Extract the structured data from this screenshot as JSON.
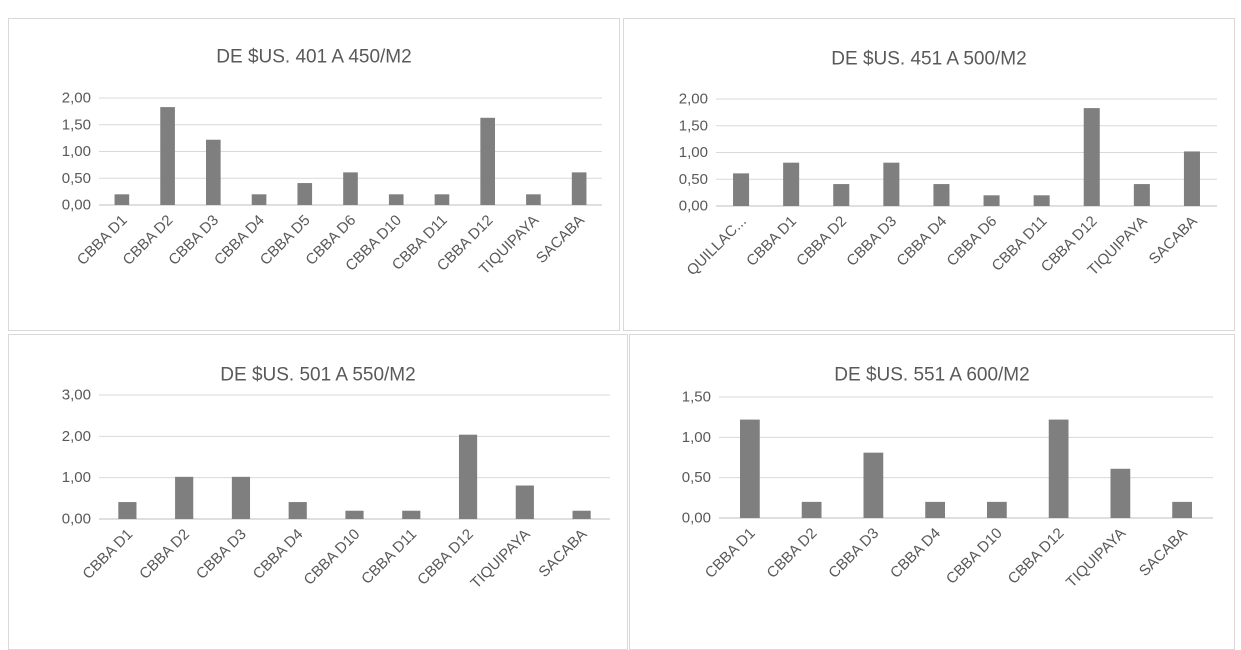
{
  "header": {
    "title": ""
  },
  "chart_data": [
    {
      "type": "bar",
      "title": "DE $US. 401 A 450/M2",
      "categories": [
        "CBBA D1",
        "CBBA D2",
        "CBBA D3",
        "CBBA D4",
        "CBBA D5",
        "CBBA D6",
        "CBBA D10",
        "CBBA D11",
        "CBBA D12",
        "TIQUIPAYA",
        "SACABA"
      ],
      "values": [
        0.2,
        1.83,
        1.22,
        0.2,
        0.41,
        0.61,
        0.2,
        0.2,
        1.63,
        0.2,
        0.61
      ],
      "yticks": [
        "0,00",
        "0,50",
        "1,00",
        "1,50",
        "2,00"
      ],
      "ylim": [
        0,
        2
      ],
      "grid": true,
      "bar_color": "#7f7f7f"
    },
    {
      "type": "bar",
      "title": "DE $US. 451 A 500/M2",
      "categories": [
        "QUILLAC...",
        "CBBA D1",
        "CBBA D2",
        "CBBA D3",
        "CBBA D4",
        "CBBA D6",
        "CBBA D11",
        "CBBA D12",
        "TIQUIPAYA",
        "SACABA"
      ],
      "values": [
        0.61,
        0.81,
        0.41,
        0.81,
        0.41,
        0.2,
        0.2,
        1.83,
        0.41,
        1.02
      ],
      "yticks": [
        "0,00",
        "0,50",
        "1,00",
        "1,50",
        "2,00"
      ],
      "ylim": [
        0,
        2
      ],
      "grid": true,
      "bar_color": "#7f7f7f"
    },
    {
      "type": "bar",
      "title": "DE $US. 501 A 550/M2",
      "categories": [
        "CBBA D1",
        "CBBA D2",
        "CBBA D3",
        "CBBA D4",
        "CBBA D10",
        "CBBA D11",
        "CBBA D12",
        "TIQUIPAYA",
        "SACABA"
      ],
      "values": [
        0.41,
        1.02,
        1.02,
        0.41,
        0.2,
        0.2,
        2.04,
        0.81,
        0.2
      ],
      "yticks": [
        "0,00",
        "1,00",
        "2,00",
        "3,00"
      ],
      "ylim": [
        0,
        3
      ],
      "grid": true,
      "bar_color": "#7f7f7f"
    },
    {
      "type": "bar",
      "title": "DE $US. 551 A 600/M2",
      "categories": [
        "CBBA D1",
        "CBBA D2",
        "CBBA D3",
        "CBBA D4",
        "CBBA D10",
        "CBBA D12",
        "TIQUIPAYA",
        "SACABA"
      ],
      "values": [
        1.22,
        0.2,
        0.81,
        0.2,
        0.2,
        1.22,
        0.61,
        0.2
      ],
      "yticks": [
        "0,00",
        "0,50",
        "1,00",
        "1,50"
      ],
      "ylim": [
        0,
        1.5
      ],
      "grid": true,
      "bar_color": "#7f7f7f"
    }
  ]
}
